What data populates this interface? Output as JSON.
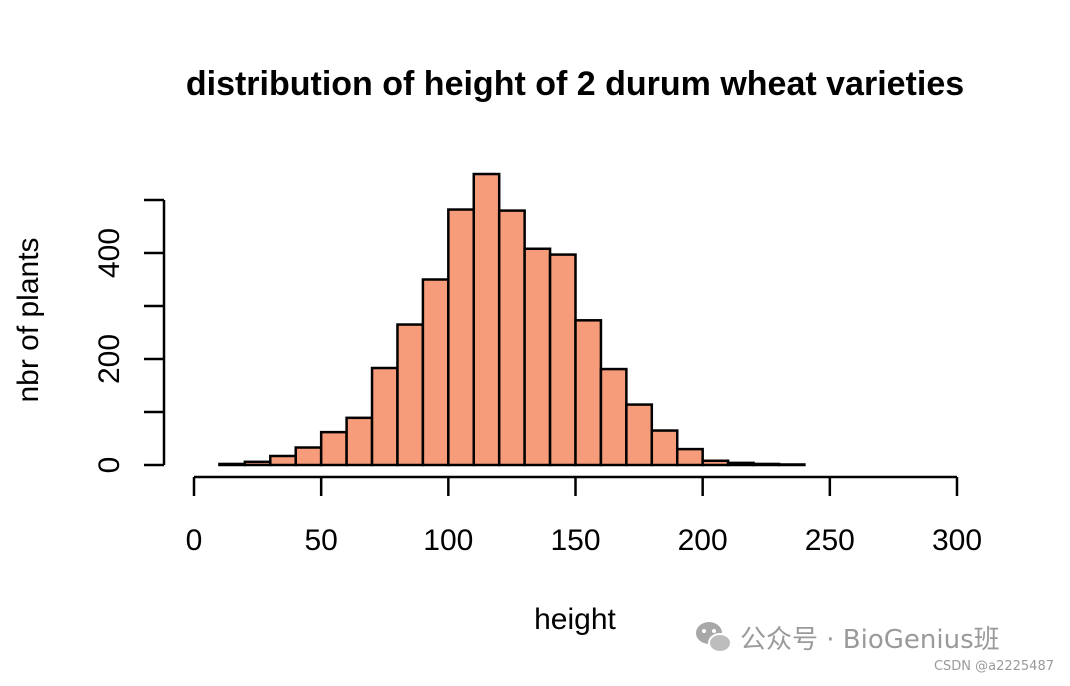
{
  "chart_data": {
    "type": "bar",
    "subtype": "histogram",
    "title": "distribution of height of 2 durum wheat varieties",
    "xlabel": "height",
    "ylabel": "nbr of plants",
    "xlim": [
      0,
      300
    ],
    "ylim": [
      0,
      500
    ],
    "x_ticks": [
      0,
      50,
      100,
      150,
      200,
      250,
      300
    ],
    "y_ticks": [
      0,
      100,
      200,
      300,
      400,
      500
    ],
    "y_tick_labels": [
      "0",
      "",
      "200",
      "",
      "400",
      ""
    ],
    "bin_width": 10,
    "bins": [
      {
        "start": 10,
        "end": 20,
        "count": 2
      },
      {
        "start": 20,
        "end": 30,
        "count": 6
      },
      {
        "start": 30,
        "end": 40,
        "count": 17
      },
      {
        "start": 40,
        "end": 50,
        "count": 33
      },
      {
        "start": 50,
        "end": 60,
        "count": 62
      },
      {
        "start": 60,
        "end": 70,
        "count": 89
      },
      {
        "start": 70,
        "end": 80,
        "count": 183
      },
      {
        "start": 80,
        "end": 90,
        "count": 265
      },
      {
        "start": 90,
        "end": 100,
        "count": 350
      },
      {
        "start": 100,
        "end": 110,
        "count": 482
      },
      {
        "start": 110,
        "end": 120,
        "count": 549
      },
      {
        "start": 120,
        "end": 130,
        "count": 480
      },
      {
        "start": 130,
        "end": 140,
        "count": 408
      },
      {
        "start": 140,
        "end": 150,
        "count": 397
      },
      {
        "start": 150,
        "end": 160,
        "count": 273
      },
      {
        "start": 160,
        "end": 170,
        "count": 181
      },
      {
        "start": 170,
        "end": 180,
        "count": 114
      },
      {
        "start": 180,
        "end": 190,
        "count": 65
      },
      {
        "start": 190,
        "end": 200,
        "count": 30
      },
      {
        "start": 200,
        "end": 210,
        "count": 8
      },
      {
        "start": 210,
        "end": 220,
        "count": 4
      },
      {
        "start": 220,
        "end": 230,
        "count": 2
      },
      {
        "start": 230,
        "end": 240,
        "count": 1
      }
    ],
    "bar_color": "#F79C7A",
    "bar_stroke": "#000000",
    "grid": false,
    "legend": "none"
  },
  "watermark": {
    "text": "公众号 · BioGenius班",
    "credit": "CSDN @a2225487",
    "color": "#9a9a9a"
  }
}
